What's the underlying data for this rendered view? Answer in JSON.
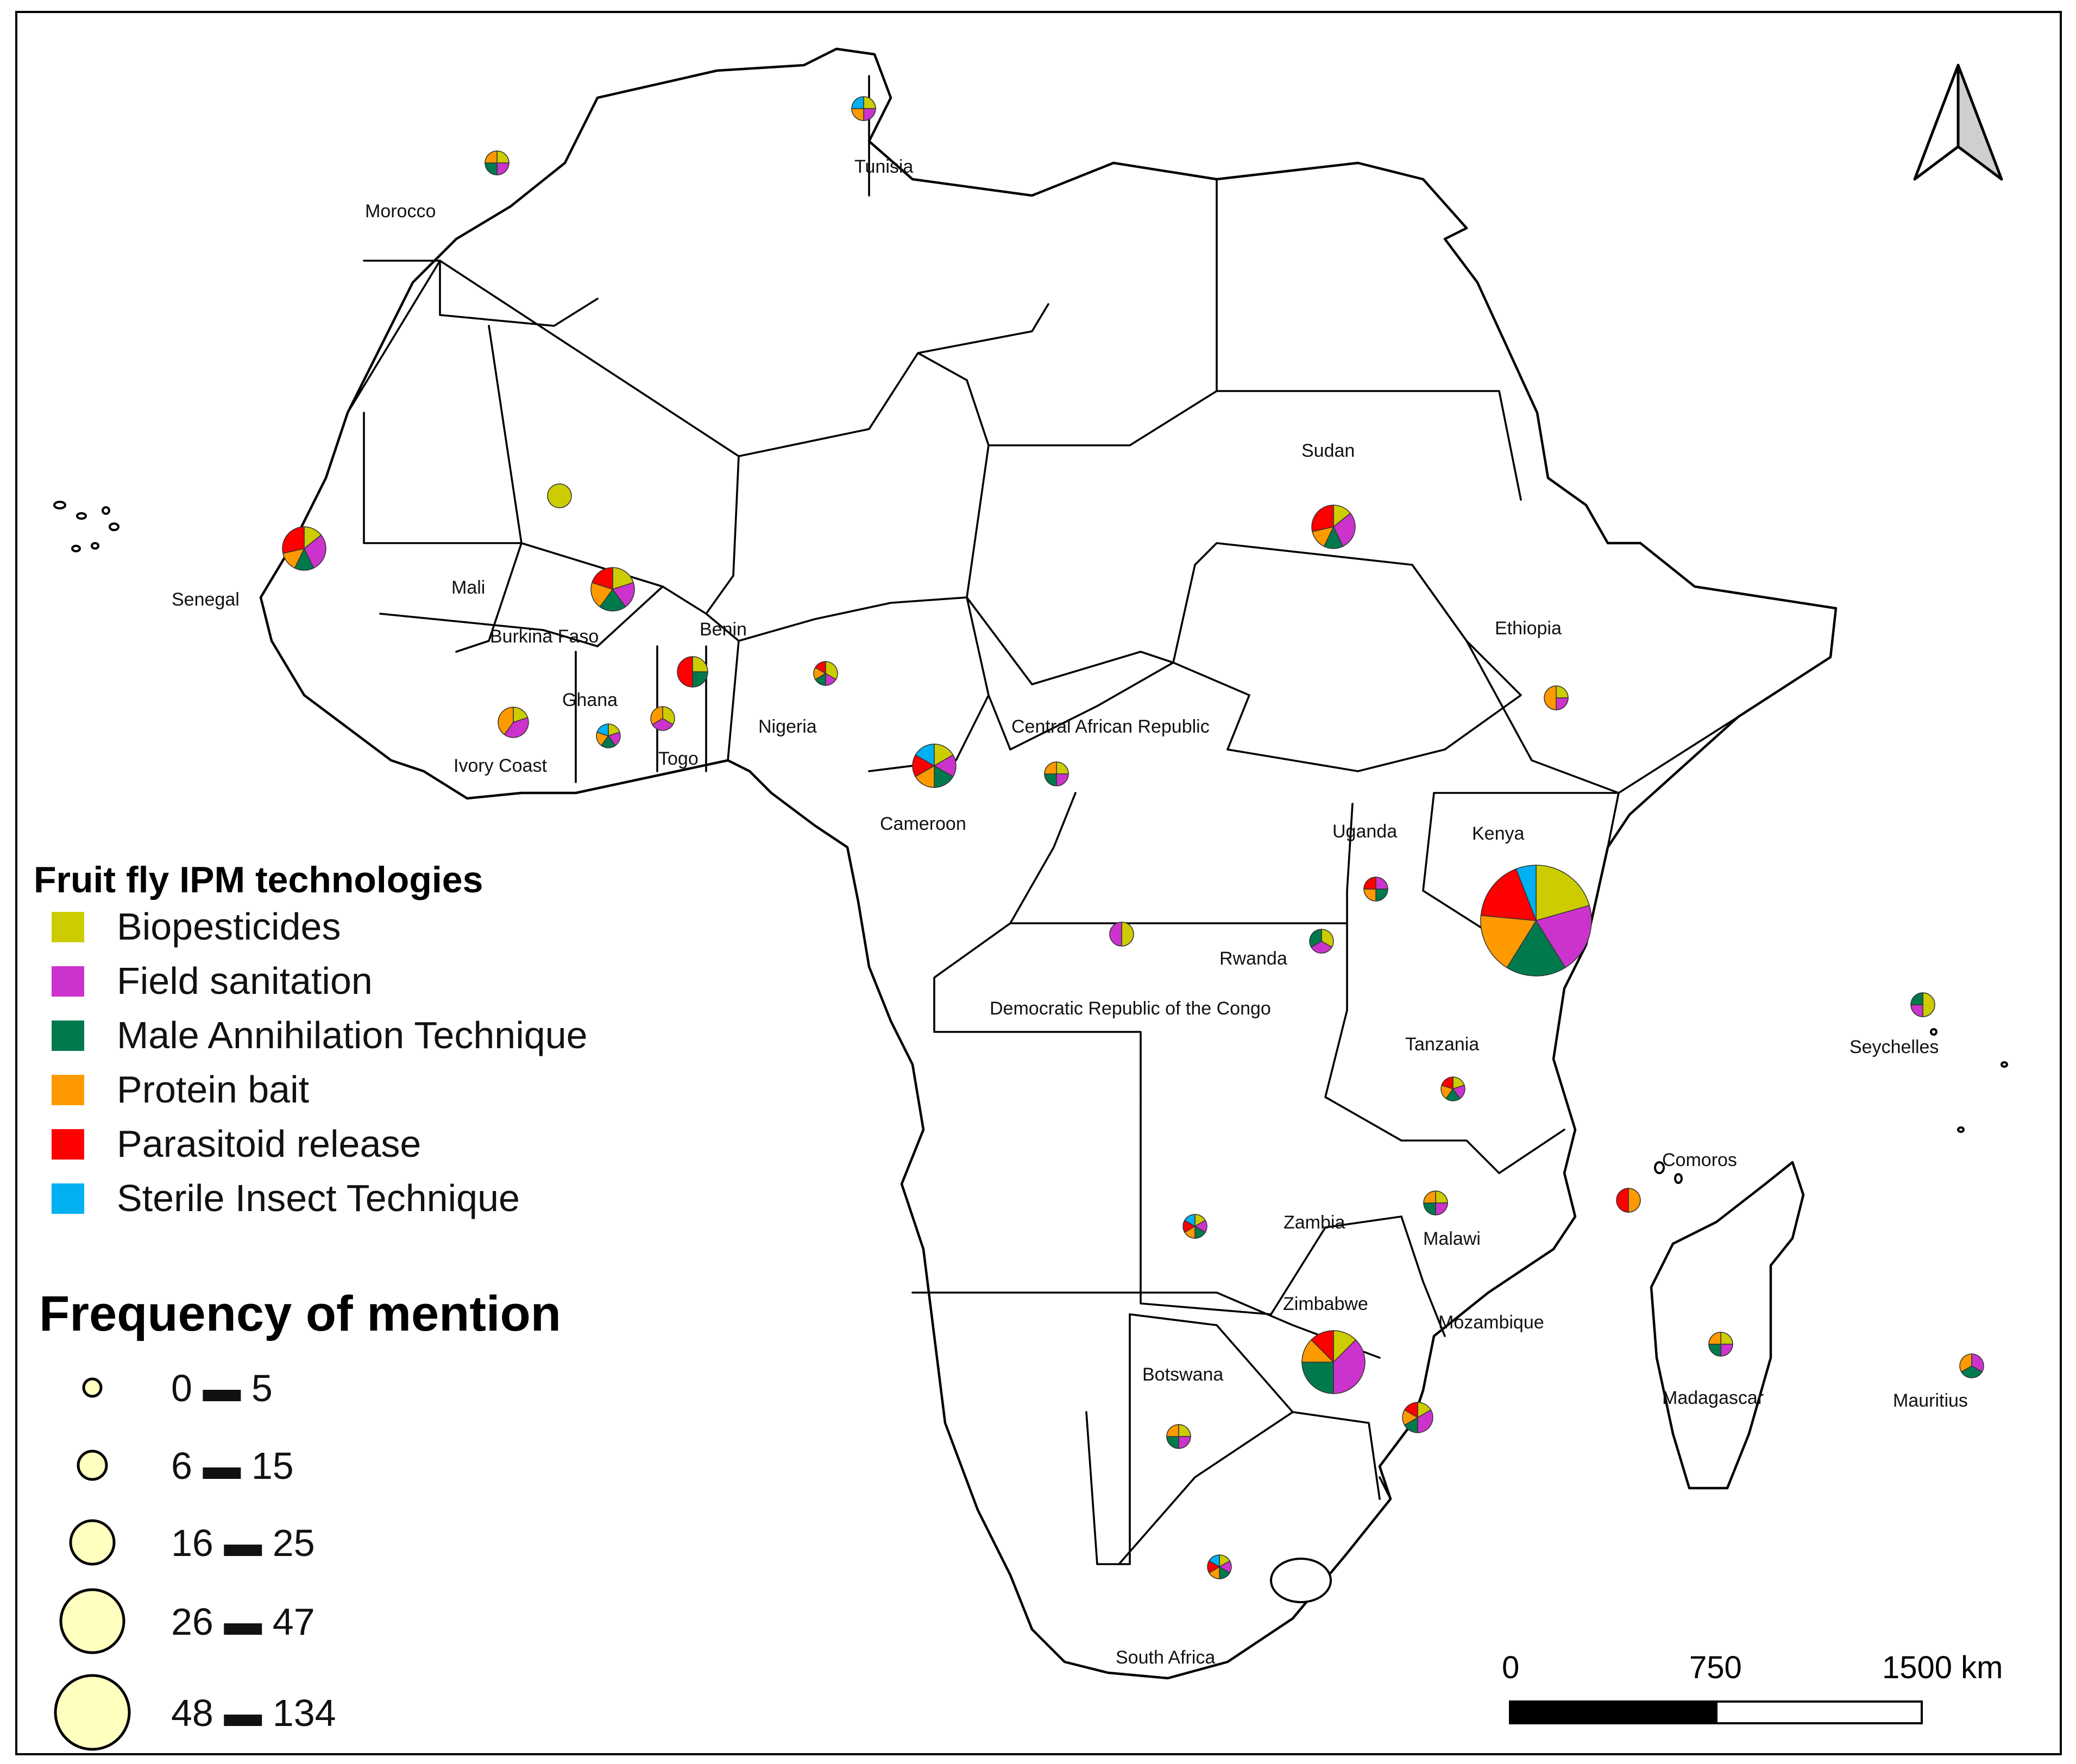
{
  "legend": {
    "title": "Fruit fly IPM technologies",
    "technologies": [
      {
        "label": "Biopesticides",
        "color": "#cccc00"
      },
      {
        "label": "Field sanitation",
        "color": "#cc33cc"
      },
      {
        "label": "Male Annihilation Technique",
        "color": "#007a4d"
      },
      {
        "label": "Protein bait",
        "color": "#ff9900"
      },
      {
        "label": "Parasitoid release",
        "color": "#ff0000"
      },
      {
        "label": "Sterile Insect Technique",
        "color": "#00b0f0"
      }
    ],
    "frequency_title": "Frequency of mention",
    "frequency_classes": [
      {
        "label": "0 ▬ 5"
      },
      {
        "label": "6 ▬ 15"
      },
      {
        "label": "16 ▬ 25"
      },
      {
        "label": "26 ▬ 47"
      },
      {
        "label": "48 ▬ 134"
      }
    ],
    "bubble_color": "#ffffc0"
  },
  "scale_bar": {
    "labels": [
      "0",
      "750",
      "1500 km"
    ]
  },
  "countries": [
    {
      "name": "Morocco",
      "freq_class": 0,
      "shares": [
        1,
        1,
        1,
        1,
        0,
        0
      ]
    },
    {
      "name": "Tunisia",
      "freq_class": 0,
      "shares": [
        1,
        1,
        0,
        1,
        0,
        1
      ]
    },
    {
      "name": "Senegal",
      "freq_class": 2,
      "shares": [
        1,
        2,
        1,
        1,
        2,
        0
      ]
    },
    {
      "name": "Mali",
      "freq_class": 0,
      "shares": [
        1,
        0,
        0,
        0,
        0,
        0
      ]
    },
    {
      "name": "Burkina Faso",
      "freq_class": 2,
      "shares": [
        1,
        1,
        1,
        1,
        1,
        0
      ]
    },
    {
      "name": "Ivory Coast",
      "freq_class": 1,
      "shares": [
        1,
        2,
        0,
        2,
        0,
        0
      ]
    },
    {
      "name": "Ghana",
      "freq_class": 0,
      "shares": [
        1,
        1,
        1,
        1,
        0,
        1
      ]
    },
    {
      "name": "Togo",
      "freq_class": 0,
      "shares": [
        1,
        1,
        0,
        1,
        0,
        0
      ]
    },
    {
      "name": "Benin",
      "freq_class": 1,
      "shares": [
        1,
        0,
        1,
        0,
        2,
        0
      ]
    },
    {
      "name": "Nigeria",
      "freq_class": 0,
      "shares": [
        2,
        1,
        1,
        1,
        1,
        0
      ]
    },
    {
      "name": "Cameroon",
      "freq_class": 2,
      "shares": [
        1,
        1,
        1,
        1,
        1,
        1
      ]
    },
    {
      "name": "Central African Republic",
      "freq_class": 0,
      "shares": [
        1,
        1,
        1,
        1,
        0,
        0
      ]
    },
    {
      "name": "Democratic Republic of the Congo",
      "freq_class": 0,
      "shares": [
        1,
        1,
        0,
        0,
        0,
        0
      ]
    },
    {
      "name": "Sudan",
      "freq_class": 2,
      "shares": [
        1,
        2,
        1,
        1,
        2,
        0
      ]
    },
    {
      "name": "Ethiopia",
      "freq_class": 0,
      "shares": [
        1,
        1,
        0,
        2,
        0,
        0
      ]
    },
    {
      "name": "Uganda",
      "freq_class": 0,
      "shares": [
        0,
        1,
        1,
        1,
        1,
        0
      ]
    },
    {
      "name": "Rwanda",
      "freq_class": 0,
      "shares": [
        1,
        1,
        1,
        0,
        0,
        0
      ]
    },
    {
      "name": "Kenya",
      "freq_class": 4,
      "shares": [
        7,
        7,
        6,
        6,
        6,
        2
      ]
    },
    {
      "name": "Tanzania",
      "freq_class": 0,
      "shares": [
        1,
        1,
        1,
        1,
        1,
        0
      ]
    },
    {
      "name": "Seychelles",
      "freq_class": 0,
      "shares": [
        2,
        1,
        1,
        0,
        0,
        0
      ]
    },
    {
      "name": "Comoros",
      "freq_class": 0,
      "shares": [
        0,
        0,
        0,
        1,
        1,
        0
      ]
    },
    {
      "name": "Zambia",
      "freq_class": 0,
      "shares": [
        1,
        1,
        1,
        1,
        1,
        1
      ]
    },
    {
      "name": "Malawi",
      "freq_class": 0,
      "shares": [
        1,
        1,
        1,
        1,
        0,
        0
      ]
    },
    {
      "name": "Zimbabwe",
      "freq_class": 3,
      "shares": [
        1,
        3,
        2,
        1,
        1,
        0
      ]
    },
    {
      "name": "Mozambique",
      "freq_class": 1,
      "shares": [
        1,
        2,
        1,
        1,
        1,
        0
      ]
    },
    {
      "name": "Botswana",
      "freq_class": 0,
      "shares": [
        1,
        1,
        1,
        1,
        0,
        0
      ]
    },
    {
      "name": "Madagascar",
      "freq_class": 0,
      "shares": [
        1,
        1,
        1,
        1,
        0,
        0
      ]
    },
    {
      "name": "Mauritius",
      "freq_class": 0,
      "shares": [
        0,
        1,
        1,
        1,
        0,
        0
      ]
    },
    {
      "name": "South Africa",
      "freq_class": 0,
      "shares": [
        1,
        1,
        1,
        1,
        1,
        1
      ]
    }
  ]
}
